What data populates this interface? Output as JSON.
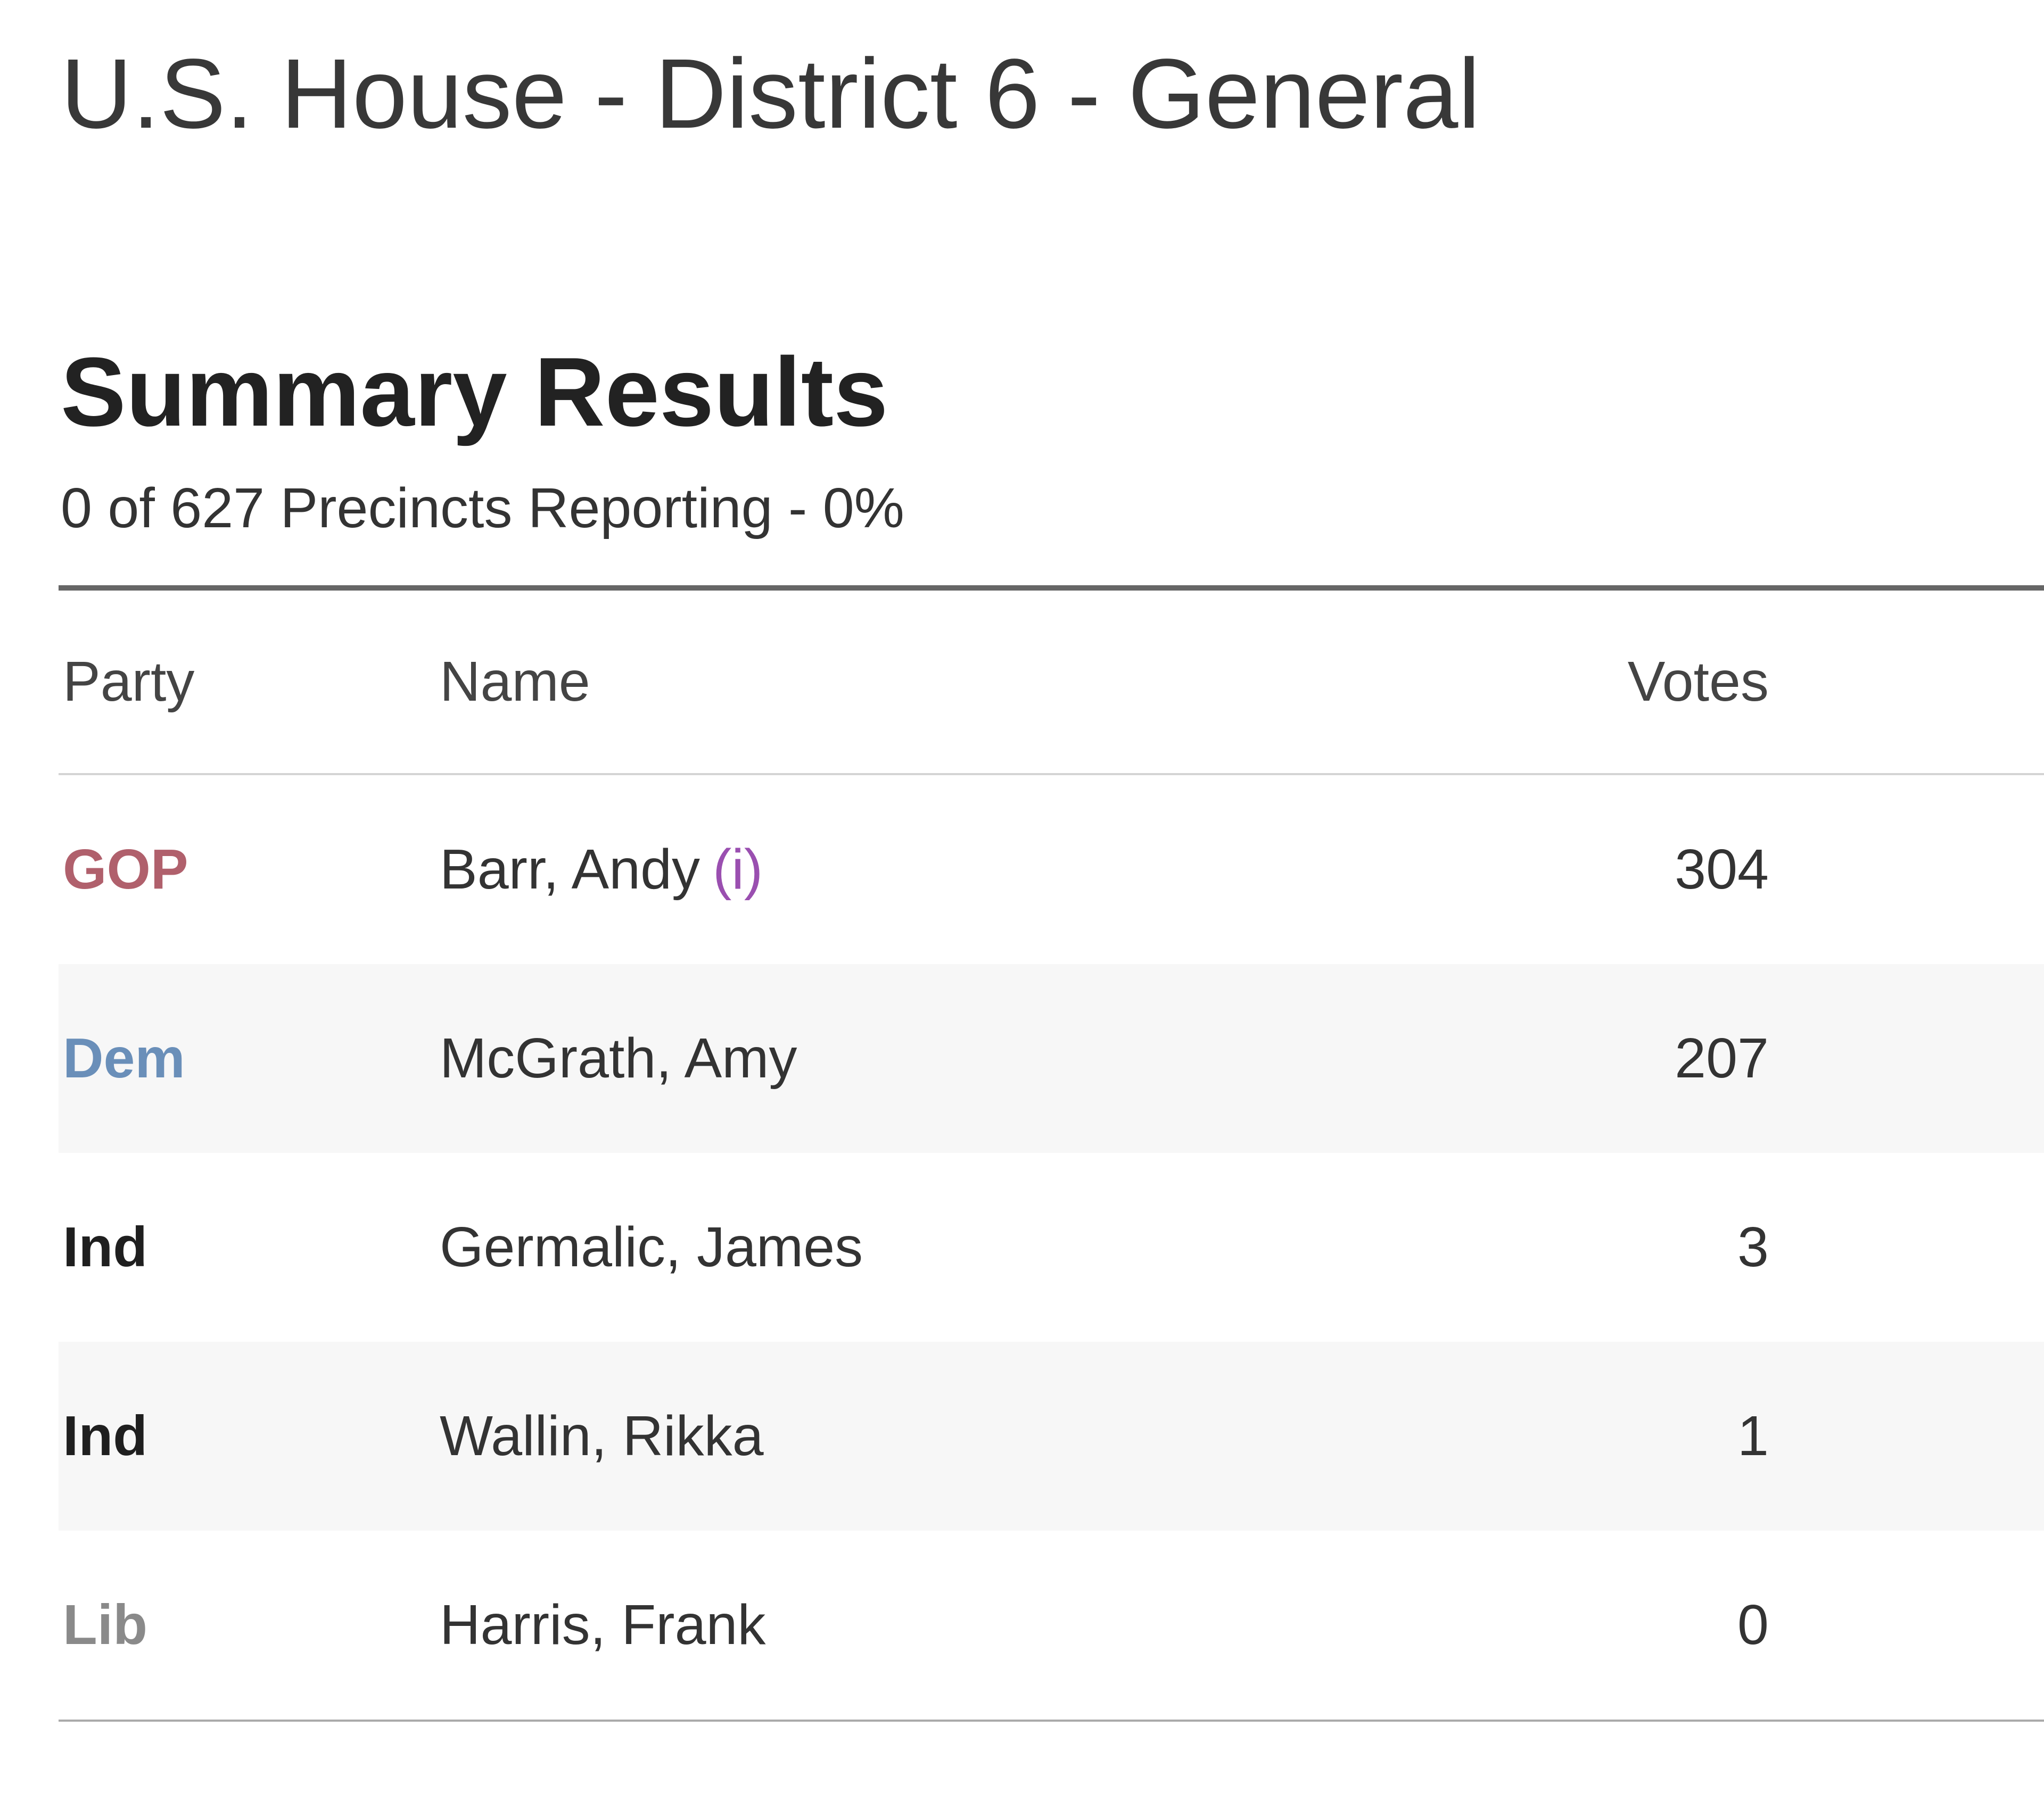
{
  "header": {
    "title": "U.S. House - District 6 - General"
  },
  "summary": {
    "title": "Summary Results",
    "subtitle": "0 of 627 Precincts Reporting - 0%"
  },
  "table": {
    "columns": [
      "Party",
      "Name",
      "Votes"
    ],
    "rows": [
      {
        "party": "GOP",
        "party_color": "#b0606c",
        "name": "Barr, Andy",
        "incumbent": "(i)",
        "votes": 304
      },
      {
        "party": "Dem",
        "party_color": "#6a8fb9",
        "name": "McGrath, Amy",
        "votes": 207
      },
      {
        "party": "Ind",
        "party_color": "#1f1f1f",
        "name": "Germalic, James",
        "votes": 3
      },
      {
        "party": "Ind",
        "party_color": "#1f1f1f",
        "name": "Wallin, Rikka",
        "votes": 1
      },
      {
        "party": "Lib",
        "party_color": "#8a8a8a",
        "name": "Harris, Frank",
        "votes": 0
      }
    ]
  }
}
